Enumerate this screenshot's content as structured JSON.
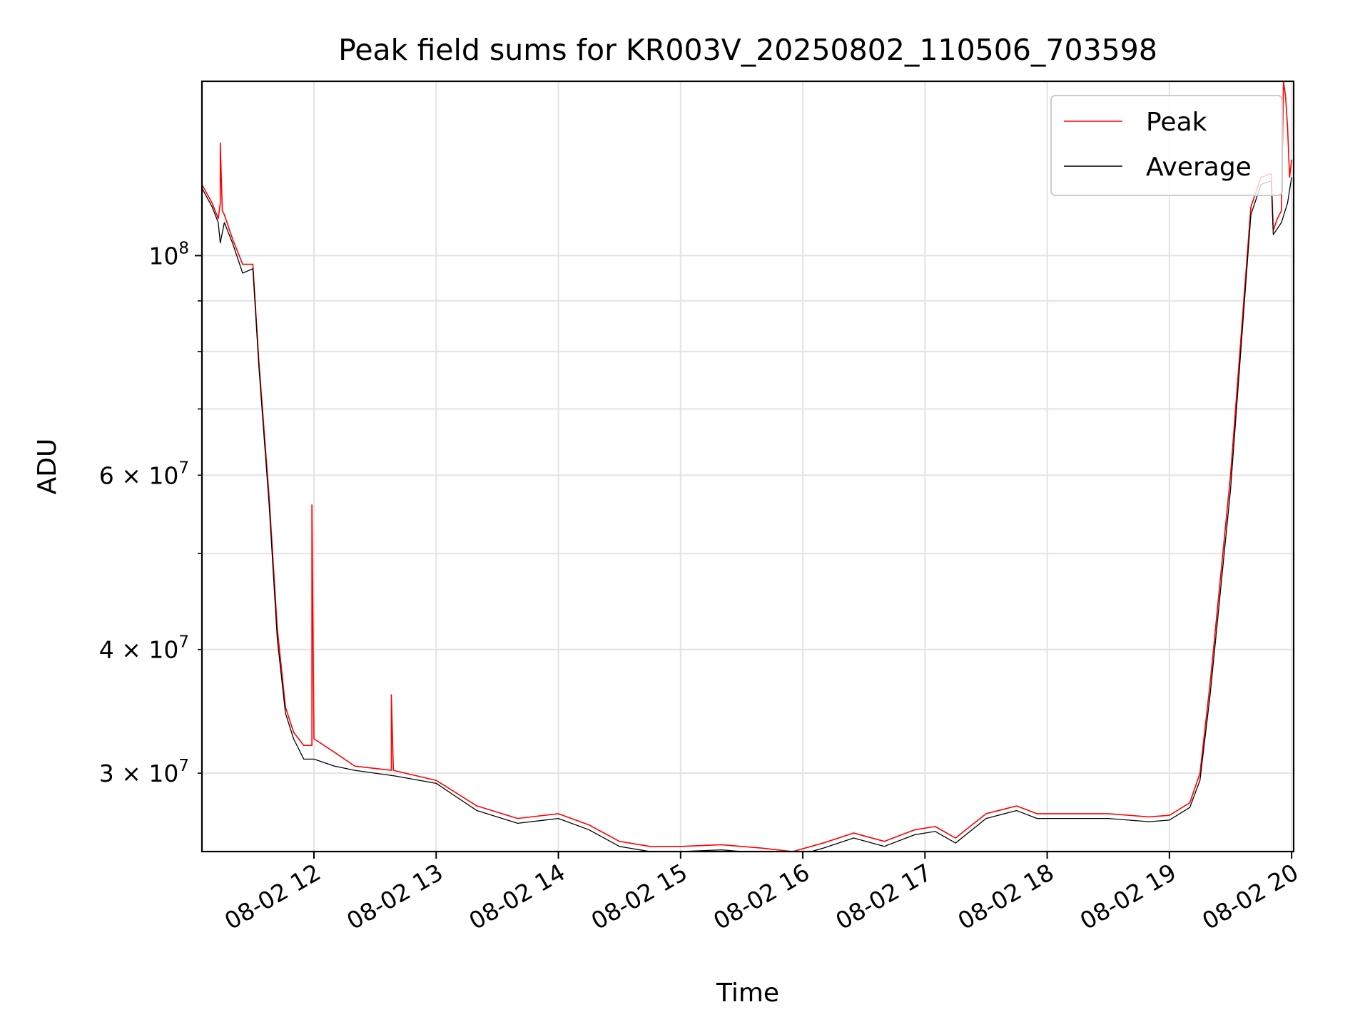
{
  "chart_data": {
    "type": "line",
    "title": "Peak field sums for KR003V_20250802_110506_703598",
    "xlabel": "Time",
    "ylabel": "ADU",
    "yscale": "log",
    "xlim": [
      "2025-08-02 11:05",
      "2025-08-02 20:01"
    ],
    "ylim": [
      25000000,
      150000000
    ],
    "x_ticks": [
      "08-02 12",
      "08-02 13",
      "08-02 14",
      "08-02 15",
      "08-02 16",
      "08-02 17",
      "08-02 18",
      "08-02 19",
      "08-02 20"
    ],
    "y_ticks_major": [
      {
        "value": 100000000,
        "base": "10",
        "exp": "8",
        "mant": ""
      }
    ],
    "y_ticks_minor": [
      {
        "value": 30000000,
        "mant": "3",
        "base": "10",
        "exp": "7"
      },
      {
        "value": 40000000,
        "mant": "4",
        "base": "10",
        "exp": "7"
      },
      {
        "value": 60000000,
        "mant": "6",
        "base": "10",
        "exp": "7"
      }
    ],
    "y_ticks_minor_unlabeled": [
      50000000,
      70000000,
      80000000,
      90000000
    ],
    "grid": true,
    "legend_position": "upper right",
    "series": [
      {
        "name": "Peak",
        "color": "#ff0000",
        "x": [
          "2025-08-02 11:05",
          "2025-08-02 11:10",
          "2025-08-02 11:13",
          "2025-08-02 11:14",
          "2025-08-02 11:14",
          "2025-08-02 11:15",
          "2025-08-02 11:16",
          "2025-08-02 11:20",
          "2025-08-02 11:25",
          "2025-08-02 11:30",
          "2025-08-02 11:33",
          "2025-08-02 11:38",
          "2025-08-02 11:42",
          "2025-08-02 11:46",
          "2025-08-02 11:50",
          "2025-08-02 11:55",
          "2025-08-02 11:59",
          "2025-08-02 11:59",
          "2025-08-02 12:00",
          "2025-08-02 12:10",
          "2025-08-02 12:20",
          "2025-08-02 12:38",
          "2025-08-02 12:38",
          "2025-08-02 12:39",
          "2025-08-02 13:00",
          "2025-08-02 13:20",
          "2025-08-02 13:40",
          "2025-08-02 14:00",
          "2025-08-02 14:15",
          "2025-08-02 14:30",
          "2025-08-02 14:45",
          "2025-08-02 15:00",
          "2025-08-02 15:20",
          "2025-08-02 15:40",
          "2025-08-02 15:55",
          "2025-08-02 16:10",
          "2025-08-02 16:25",
          "2025-08-02 16:40",
          "2025-08-02 16:55",
          "2025-08-02 17:05",
          "2025-08-02 17:15",
          "2025-08-02 17:30",
          "2025-08-02 17:45",
          "2025-08-02 17:55",
          "2025-08-02 18:05",
          "2025-08-02 18:30",
          "2025-08-02 18:50",
          "2025-08-02 19:00",
          "2025-08-02 19:10",
          "2025-08-02 19:15",
          "2025-08-02 19:20",
          "2025-08-02 19:30",
          "2025-08-02 19:40",
          "2025-08-02 19:45",
          "2025-08-02 19:50",
          "2025-08-02 19:51",
          "2025-08-02 19:53",
          "2025-08-02 19:55",
          "2025-08-02 19:56",
          "2025-08-02 19:57",
          "2025-08-02 19:58",
          "2025-08-02 19:59",
          "2025-08-02 20:00"
        ],
        "values": [
          118000000,
          113000000,
          109000000,
          113000000,
          130000000,
          111000000,
          110000000,
          104000000,
          98000000,
          98000000,
          78000000,
          57000000,
          42000000,
          35000000,
          33000000,
          32000000,
          32000000,
          56000000,
          32500000,
          31500000,
          30500000,
          30200000,
          36000000,
          30200000,
          29500000,
          27800000,
          27000000,
          27300000,
          26600000,
          25600000,
          25300000,
          25300000,
          25400000,
          25200000,
          25000000,
          25500000,
          26100000,
          25600000,
          26300000,
          26500000,
          25800000,
          27300000,
          27800000,
          27300000,
          27300000,
          27300000,
          27100000,
          27200000,
          28000000,
          30000000,
          37000000,
          60000000,
          112000000,
          120000000,
          121000000,
          106000000,
          109000000,
          111000000,
          150000000,
          145000000,
          135000000,
          120000000,
          125000000
        ]
      },
      {
        "name": "Average",
        "color": "#000000",
        "x": [
          "2025-08-02 11:05",
          "2025-08-02 11:10",
          "2025-08-02 11:13",
          "2025-08-02 11:14",
          "2025-08-02 11:16",
          "2025-08-02 11:20",
          "2025-08-02 11:25",
          "2025-08-02 11:30",
          "2025-08-02 11:33",
          "2025-08-02 11:38",
          "2025-08-02 11:42",
          "2025-08-02 11:46",
          "2025-08-02 11:50",
          "2025-08-02 11:55",
          "2025-08-02 12:00",
          "2025-08-02 12:10",
          "2025-08-02 12:20",
          "2025-08-02 12:40",
          "2025-08-02 13:00",
          "2025-08-02 13:20",
          "2025-08-02 13:40",
          "2025-08-02 14:00",
          "2025-08-02 14:15",
          "2025-08-02 14:30",
          "2025-08-02 14:45",
          "2025-08-02 15:00",
          "2025-08-02 15:20",
          "2025-08-02 15:40",
          "2025-08-02 15:55",
          "2025-08-02 16:10",
          "2025-08-02 16:25",
          "2025-08-02 16:40",
          "2025-08-02 16:55",
          "2025-08-02 17:05",
          "2025-08-02 17:15",
          "2025-08-02 17:30",
          "2025-08-02 17:45",
          "2025-08-02 17:55",
          "2025-08-02 18:05",
          "2025-08-02 18:30",
          "2025-08-02 18:50",
          "2025-08-02 19:00",
          "2025-08-02 19:10",
          "2025-08-02 19:15",
          "2025-08-02 19:20",
          "2025-08-02 19:30",
          "2025-08-02 19:40",
          "2025-08-02 19:45",
          "2025-08-02 19:50",
          "2025-08-02 19:51",
          "2025-08-02 19:55",
          "2025-08-02 19:58",
          "2025-08-02 20:00"
        ],
        "values": [
          117000000,
          112000000,
          108000000,
          103000000,
          108000000,
          103000000,
          96000000,
          97000000,
          77000000,
          56000000,
          41000000,
          34500000,
          32500000,
          31000000,
          31000000,
          30500000,
          30200000,
          29800000,
          29300000,
          27500000,
          26700000,
          27000000,
          26300000,
          25300000,
          25000000,
          25000000,
          25100000,
          24900000,
          24700000,
          25200000,
          25800000,
          25300000,
          26000000,
          26200000,
          25500000,
          27000000,
          27500000,
          27000000,
          27000000,
          27000000,
          26800000,
          26900000,
          27700000,
          29500000,
          36000000,
          58000000,
          110000000,
          118000000,
          119000000,
          105000000,
          108000000,
          113000000,
          120000000
        ]
      }
    ]
  }
}
